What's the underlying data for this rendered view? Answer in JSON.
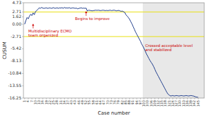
{
  "chart_data": {
    "type": "line",
    "title": "",
    "xlabel": "Case number",
    "ylabel": "CUSUM",
    "color": "#1f3d8c",
    "x": [
      1,
      2,
      3,
      4,
      5,
      6,
      7,
      8,
      9,
      10,
      11,
      12,
      13,
      14,
      15,
      16,
      17,
      18,
      19,
      20,
      21,
      22,
      23,
      24,
      25,
      26,
      27,
      28,
      29,
      30,
      31,
      32,
      33,
      34,
      35,
      36,
      37,
      38,
      39,
      40,
      41,
      42,
      43,
      44,
      45,
      46,
      47,
      48,
      49,
      50,
      51,
      52,
      53,
      54,
      55,
      56,
      57,
      58,
      59,
      60,
      61,
      62,
      63,
      64,
      65,
      66,
      67,
      68,
      69,
      70,
      71,
      72,
      73,
      74,
      75,
      76,
      77,
      78,
      79,
      80,
      81,
      82,
      83,
      84,
      85,
      86,
      87,
      88,
      89,
      90,
      91,
      92,
      93,
      94,
      95,
      96,
      97,
      98,
      99,
      100,
      101,
      102,
      103,
      104,
      105,
      106,
      107,
      108,
      109,
      110,
      111,
      112,
      113,
      114,
      115,
      116,
      117,
      118,
      119,
      120,
      121,
      122,
      123,
      124,
      125,
      126,
      127,
      128,
      129,
      130,
      131,
      132,
      133,
      134,
      135,
      136,
      137,
      138,
      139,
      140,
      141,
      142,
      143,
      144,
      145
    ],
    "values": [
      0.0,
      0.8,
      1.5,
      1.2,
      1.8,
      2.2,
      1.9,
      2.5,
      2.1,
      2.8,
      3.0,
      3.3,
      3.6,
      3.5,
      3.7,
      3.55,
      3.5,
      3.55,
      3.6,
      3.5,
      3.55,
      3.6,
      3.5,
      3.55,
      3.65,
      3.5,
      3.55,
      3.6,
      3.5,
      3.6,
      3.55,
      3.65,
      3.5,
      3.7,
      3.55,
      3.6,
      3.55,
      3.65,
      3.5,
      3.55,
      3.6,
      3.55,
      3.5,
      3.55,
      3.4,
      3.5,
      3.55,
      3.6,
      3.5,
      3.55,
      3.5,
      3.55,
      2.9,
      3.1,
      3.05,
      3.0,
      2.95,
      3.0,
      3.05,
      3.1,
      3.05,
      3.1,
      3.05,
      3.0,
      3.05,
      3.1,
      3.05,
      3.0,
      3.05,
      3.0,
      3.05,
      3.1,
      3.0,
      3.05,
      3.1,
      3.05,
      2.95,
      3.0,
      3.05,
      2.95,
      2.85,
      2.9,
      2.75,
      2.6,
      2.1,
      1.8,
      1.5,
      1.1,
      0.6,
      0.1,
      -0.5,
      -1.1,
      -1.7,
      -2.2,
      -2.7,
      -3.2,
      -3.7,
      -4.3,
      -4.8,
      -5.3,
      -5.9,
      -6.5,
      -7.0,
      -7.5,
      -8.0,
      -8.4,
      -8.8,
      -9.3,
      -9.9,
      -10.5,
      -11.0,
      -11.5,
      -12.0,
      -12.5,
      -13.0,
      -13.5,
      -14.0,
      -14.5,
      -15.0,
      -15.4,
      -15.6,
      -15.8,
      -15.75,
      -15.7,
      -15.8,
      -15.75,
      -15.7,
      -15.75,
      -15.8,
      -15.75,
      -15.7,
      -15.75,
      -15.8,
      -15.75,
      -15.7,
      -15.75,
      -15.8,
      -15.75,
      -15.7,
      -15.75,
      -15.8,
      -15.9,
      -16.0,
      -16.05,
      -16.1
    ],
    "xlim": [
      0,
      150
    ],
    "xticks": [
      1,
      4,
      7,
      10,
      13,
      16,
      19,
      22,
      25,
      28,
      31,
      34,
      37,
      40,
      43,
      46,
      49,
      52,
      55,
      58,
      61,
      64,
      67,
      70,
      73,
      76,
      79,
      82,
      85,
      88,
      91,
      94,
      97,
      100,
      103,
      106,
      109,
      112,
      115,
      118,
      121,
      124,
      127,
      130,
      133,
      136,
      139,
      142,
      145
    ],
    "ylim": [
      -16.25,
      4.73
    ],
    "yticks": [
      -16.25,
      -13.55,
      -10.84,
      -8.13,
      -5.42,
      -2.71,
      {
        "value": 0,
        "label": "0.00"
      },
      1.62,
      2.71,
      4.73
    ],
    "grid": false,
    "reference_lines": [
      {
        "value": 2.71,
        "color": "#e8e010"
      },
      {
        "value": -2.71,
        "color": "#e8e010"
      }
    ],
    "shaded_region": {
      "from": 99,
      "to": 150,
      "color": "#e8e8e8"
    },
    "annotations": [
      {
        "text": "Multidisciplinary ECMO\nteam organized",
        "x": 8,
        "y": 0.15,
        "arrow": true,
        "color": "#cc0000"
      },
      {
        "text": "Begins to improve",
        "x": 52,
        "y": 2.9,
        "arrow": true,
        "color": "#cc0000"
      },
      {
        "text": "Crossed acceptable level\nand stabilized",
        "x": 101,
        "y": -4.2,
        "arrow": false,
        "color": "#cc0000"
      }
    ]
  }
}
